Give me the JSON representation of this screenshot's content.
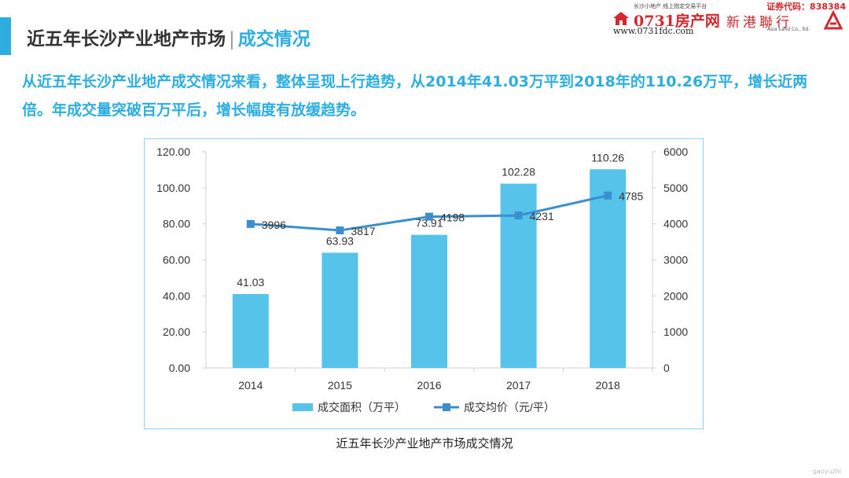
{
  "header": {
    "title": "近五年长沙产业地产市场",
    "separator": "|",
    "subtitle": "成交情况"
  },
  "logos": {
    "fdc_tagline": "长沙小地产 线上指定交易平台",
    "fdc_brand": "0731房产网",
    "fdc_url": "www.0731fdc.com",
    "stock_code": "证券代码：838384",
    "company_cn": "新港聯行",
    "company_en": "Asia Land Co., ltd."
  },
  "summary": "从近五年长沙产业地产成交情况来看，整体呈现上行趋势，从2014年41.03万平到2018年的110.26万平，增长近两倍。年成交量突破百万平后，增长幅度有放缓趋势。",
  "caption": "近五年长沙产业地产市场成交情况",
  "watermark": "gaoyuzhi",
  "colors": {
    "accent": "#2eaee0",
    "bar": "#56c3eb",
    "line": "#3a8fcc",
    "brand_red": "#d3282e"
  },
  "chart_data": {
    "type": "bar",
    "categories": [
      "2014",
      "2015",
      "2016",
      "2017",
      "2018"
    ],
    "series": [
      {
        "name": "成交面积（万平）",
        "type": "bar",
        "axis": "left",
        "values": [
          41.03,
          63.93,
          73.91,
          102.28,
          110.26
        ],
        "labels": [
          "41.03",
          "63.93",
          "73.91",
          "102.28",
          "110.26"
        ]
      },
      {
        "name": "成交均价（元/平）",
        "type": "line",
        "axis": "right",
        "values": [
          3996,
          3817,
          4198,
          4231,
          4785
        ],
        "labels": [
          "3996",
          "3817",
          "4198",
          "4231",
          "4785"
        ]
      }
    ],
    "y_left": {
      "ylim": [
        0,
        120
      ],
      "ticks": [
        "0.00",
        "20.00",
        "40.00",
        "60.00",
        "80.00",
        "100.00",
        "120.00"
      ]
    },
    "y_right": {
      "ylim": [
        0,
        6000
      ],
      "ticks": [
        "0",
        "1000",
        "2000",
        "3000",
        "4000",
        "5000",
        "6000"
      ]
    },
    "grid": false,
    "legend_position": "bottom"
  }
}
